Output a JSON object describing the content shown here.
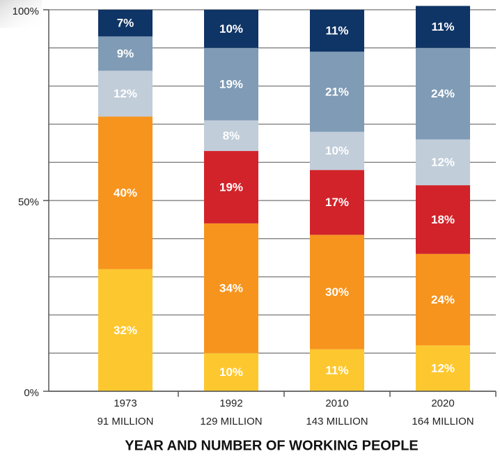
{
  "chart_data": {
    "type": "stacked_bar",
    "xlabel": "YEAR AND NUMBER OF WORKING PEOPLE",
    "categories": [
      [
        "1973",
        "91 MILLION"
      ],
      [
        "1992",
        "129 MILLION"
      ],
      [
        "2010",
        "143 MILLION"
      ],
      [
        "2020",
        "164 MILLION"
      ]
    ],
    "series": [
      {
        "color": "#fdc82f",
        "values": [
          32,
          10,
          11,
          12
        ],
        "value_labels": [
          "32%",
          "10%",
          "11%",
          "12%"
        ]
      },
      {
        "color": "#f7941d",
        "values": [
          40,
          34,
          30,
          24
        ],
        "value_labels": [
          "40%",
          "34%",
          "30%",
          "24%"
        ]
      },
      {
        "color": "#d2232a",
        "values": [
          null,
          19,
          17,
          18
        ],
        "value_labels": [
          null,
          "19%",
          "17%",
          "18%"
        ]
      },
      {
        "color": "#c1cdd9",
        "values": [
          12,
          8,
          10,
          12
        ],
        "value_labels": [
          "12%",
          "8%",
          "10%",
          "12%"
        ]
      },
      {
        "color": "#7f9bb5",
        "values": [
          9,
          19,
          21,
          24
        ],
        "value_labels": [
          "9%",
          "19%",
          "21%",
          "24%"
        ]
      },
      {
        "color": "#0f3466",
        "values": [
          7,
          10,
          11,
          11
        ],
        "value_labels": [
          "7%",
          "10%",
          "11%",
          "11%"
        ]
      }
    ],
    "ylim": [
      0,
      100
    ],
    "yticks": [
      {
        "value": 0,
        "label": "0%"
      },
      {
        "value": 50,
        "label": "50%"
      },
      {
        "value": 100,
        "label": "100%"
      }
    ],
    "grid_lines": [
      0,
      10,
      20,
      30,
      40,
      50,
      60,
      70,
      80,
      90,
      100
    ],
    "grid": true
  }
}
